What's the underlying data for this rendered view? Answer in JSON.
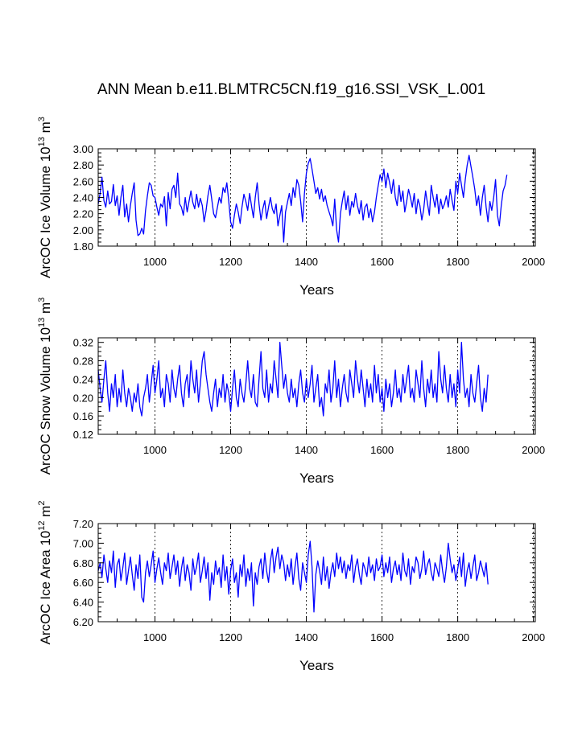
{
  "title": "ANN Mean b.e11.BLMTRC5CN.f19_g16.SSI_VSK_L.001",
  "series_color": "#0000ff",
  "chart_data": [
    {
      "type": "line",
      "id": "ice-volume",
      "title": "",
      "xlabel": "Years",
      "ylabel": {
        "base": "ArcOC Ice Volume 10",
        "exp": "13",
        "unit": " m",
        "unit_exp": "3"
      },
      "xlim": [
        850,
        2005
      ],
      "ylim": [
        1.8,
        3.0
      ],
      "xticks": [
        1000,
        1200,
        1400,
        1600,
        1800,
        2000
      ],
      "xtick_labels": [
        "1000",
        "1200",
        "1400",
        "1600",
        "1800",
        "2000"
      ],
      "yticks": [
        1.8,
        2.0,
        2.2,
        2.4,
        2.6,
        2.8,
        3.0
      ],
      "ytick_labels": [
        "1.80",
        "2.00",
        "2.20",
        "2.40",
        "2.60",
        "2.80",
        "3.00"
      ],
      "grid": "vertical dashed at major x ticks",
      "series": [
        {
          "x_start": 850,
          "x_step": 5,
          "values": [
            2.32,
            2.45,
            2.65,
            2.36,
            2.28,
            2.48,
            2.32,
            2.35,
            2.56,
            2.3,
            2.42,
            2.18,
            2.4,
            2.55,
            2.16,
            2.32,
            2.1,
            2.3,
            2.45,
            2.58,
            2.12,
            1.93,
            1.95,
            2.02,
            1.95,
            2.24,
            2.42,
            2.58,
            2.55,
            2.42,
            2.4,
            2.28,
            2.18,
            2.32,
            2.28,
            2.41,
            2.05,
            2.46,
            2.26,
            2.5,
            2.55,
            2.4,
            2.7,
            2.32,
            2.28,
            2.18,
            2.4,
            2.22,
            2.35,
            2.48,
            2.34,
            2.26,
            2.44,
            2.28,
            2.39,
            2.3,
            2.1,
            2.24,
            2.42,
            2.55,
            2.38,
            2.2,
            2.15,
            2.28,
            2.4,
            2.33,
            2.52,
            2.46,
            2.58,
            2.35,
            2.1,
            2.02,
            2.18,
            2.32,
            2.22,
            2.08,
            2.28,
            2.44,
            2.35,
            2.24,
            2.45,
            2.3,
            2.15,
            2.4,
            2.58,
            2.32,
            2.12,
            2.26,
            2.36,
            2.14,
            2.28,
            2.4,
            2.26,
            2.2,
            2.32,
            2.05,
            2.18,
            2.3,
            1.85,
            2.22,
            2.34,
            2.45,
            2.3,
            2.52,
            2.4,
            2.62,
            2.55,
            2.35,
            2.1,
            2.45,
            2.7,
            2.82,
            2.88,
            2.75,
            2.6,
            2.45,
            2.52,
            2.38,
            2.5,
            2.35,
            2.42,
            2.3,
            2.22,
            2.15,
            2.05,
            2.38,
            2.0,
            1.85,
            2.2,
            2.35,
            2.48,
            2.25,
            2.42,
            2.18,
            2.35,
            2.28,
            2.45,
            2.3,
            2.2,
            2.36,
            2.12,
            2.28,
            2.32,
            2.15,
            2.26,
            2.1,
            2.22,
            2.4,
            2.55,
            2.68,
            2.6,
            2.75,
            2.52,
            2.7,
            2.58,
            2.45,
            2.62,
            2.4,
            2.3,
            2.55,
            2.35,
            2.48,
            2.22,
            2.35,
            2.5,
            2.4,
            2.28,
            2.45,
            2.2,
            2.38,
            2.3,
            2.12,
            2.25,
            2.48,
            2.33,
            2.18,
            2.55,
            2.4,
            2.28,
            2.44,
            2.2,
            2.38,
            2.26,
            2.32,
            2.42,
            2.28,
            2.5,
            2.36,
            2.24,
            2.6,
            2.45,
            2.7,
            2.55,
            2.4,
            2.62,
            2.8,
            2.92,
            2.78,
            2.65,
            2.5,
            2.3,
            2.42,
            2.18,
            2.4,
            2.55,
            2.28,
            2.1,
            2.35,
            2.24,
            2.4,
            2.62,
            2.18,
            2.05,
            2.3,
            2.48,
            2.55,
            2.68
          ]
        }
      ]
    },
    {
      "type": "line",
      "id": "snow-volume",
      "title": "",
      "xlabel": "Years",
      "ylabel": {
        "base": "ArcOC Snow Volume 10",
        "exp": "13",
        "unit": " m",
        "unit_exp": "3"
      },
      "xlim": [
        850,
        2005
      ],
      "ylim": [
        0.12,
        0.33
      ],
      "xticks": [
        1000,
        1200,
        1400,
        1600,
        1800,
        2000
      ],
      "xtick_labels": [
        "1000",
        "1200",
        "1400",
        "1600",
        "1800",
        "2000"
      ],
      "yticks": [
        0.12,
        0.16,
        0.2,
        0.24,
        0.28,
        0.32
      ],
      "ytick_labels": [
        "0.12",
        "0.16",
        "0.20",
        "0.24",
        "0.28",
        "0.32"
      ],
      "grid": "vertical dashed at major x ticks",
      "series": [
        {
          "x_start": 850,
          "x_step": 5,
          "values": [
            0.26,
            0.22,
            0.19,
            0.24,
            0.28,
            0.21,
            0.17,
            0.23,
            0.2,
            0.25,
            0.18,
            0.22,
            0.19,
            0.26,
            0.21,
            0.18,
            0.22,
            0.2,
            0.17,
            0.21,
            0.19,
            0.23,
            0.18,
            0.16,
            0.2,
            0.22,
            0.25,
            0.19,
            0.23,
            0.27,
            0.21,
            0.24,
            0.28,
            0.2,
            0.22,
            0.18,
            0.25,
            0.23,
            0.19,
            0.26,
            0.22,
            0.2,
            0.24,
            0.27,
            0.21,
            0.18,
            0.23,
            0.25,
            0.2,
            0.28,
            0.24,
            0.21,
            0.26,
            0.19,
            0.23,
            0.28,
            0.3,
            0.25,
            0.22,
            0.19,
            0.17,
            0.21,
            0.24,
            0.18,
            0.22,
            0.2,
            0.25,
            0.19,
            0.23,
            0.21,
            0.17,
            0.22,
            0.26,
            0.2,
            0.18,
            0.24,
            0.21,
            0.19,
            0.23,
            0.28,
            0.22,
            0.2,
            0.25,
            0.19,
            0.18,
            0.24,
            0.3,
            0.22,
            0.2,
            0.26,
            0.19,
            0.23,
            0.21,
            0.28,
            0.24,
            0.2,
            0.32,
            0.27,
            0.22,
            0.25,
            0.21,
            0.19,
            0.24,
            0.2,
            0.22,
            0.18,
            0.23,
            0.26,
            0.21,
            0.19,
            0.24,
            0.2,
            0.23,
            0.27,
            0.19,
            0.22,
            0.25,
            0.18,
            0.2,
            0.16,
            0.23,
            0.21,
            0.26,
            0.19,
            0.22,
            0.28,
            0.2,
            0.24,
            0.18,
            0.22,
            0.25,
            0.21,
            0.19,
            0.26,
            0.23,
            0.2,
            0.28,
            0.24,
            0.21,
            0.26,
            0.22,
            0.18,
            0.24,
            0.2,
            0.23,
            0.19,
            0.27,
            0.21,
            0.25,
            0.19,
            0.22,
            0.17,
            0.24,
            0.2,
            0.23,
            0.18,
            0.21,
            0.26,
            0.2,
            0.22,
            0.19,
            0.25,
            0.21,
            0.24,
            0.27,
            0.2,
            0.22,
            0.19,
            0.26,
            0.23,
            0.2,
            0.28,
            0.22,
            0.18,
            0.24,
            0.21,
            0.26,
            0.2,
            0.23,
            0.19,
            0.3,
            0.24,
            0.21,
            0.27,
            0.22,
            0.19,
            0.25,
            0.2,
            0.23,
            0.18,
            0.26,
            0.21,
            0.32,
            0.24,
            0.2,
            0.22,
            0.18,
            0.25,
            0.21,
            0.19,
            0.23,
            0.27,
            0.2,
            0.17,
            0.22,
            0.19,
            0.25
          ]
        }
      ]
    },
    {
      "type": "line",
      "id": "ice-area",
      "title": "",
      "xlabel": "Years",
      "ylabel": {
        "base": "ArcOC Ice Area 10",
        "exp": "12",
        "unit": " m",
        "unit_exp": "2"
      },
      "xlim": [
        850,
        2005
      ],
      "ylim": [
        6.2,
        7.2
      ],
      "xticks": [
        1000,
        1200,
        1400,
        1600,
        1800,
        2000
      ],
      "xtick_labels": [
        "1000",
        "1200",
        "1400",
        "1600",
        "1800",
        "2000"
      ],
      "yticks": [
        6.2,
        6.4,
        6.6,
        6.8,
        7.0,
        7.2
      ],
      "ytick_labels": [
        "6.20",
        "6.40",
        "6.60",
        "6.80",
        "7.00",
        "7.20"
      ],
      "grid": "vertical dashed at major x ticks",
      "series": [
        {
          "x_start": 850,
          "x_step": 5,
          "values": [
            6.72,
            6.8,
            6.65,
            6.88,
            6.74,
            6.6,
            6.82,
            6.7,
            6.92,
            6.55,
            6.78,
            6.84,
            6.62,
            6.75,
            6.9,
            6.58,
            6.72,
            6.86,
            6.68,
            6.52,
            6.78,
            6.64,
            6.88,
            6.45,
            6.4,
            6.7,
            6.82,
            6.66,
            6.78,
            6.92,
            6.6,
            6.74,
            6.85,
            6.7,
            6.58,
            6.8,
            6.72,
            6.9,
            6.64,
            6.76,
            6.88,
            6.68,
            6.82,
            6.56,
            6.74,
            6.86,
            6.62,
            6.78,
            6.7,
            6.52,
            6.84,
            6.68,
            6.76,
            6.9,
            6.6,
            6.72,
            6.86,
            6.64,
            6.8,
            6.42,
            6.7,
            6.58,
            6.82,
            6.68,
            6.75,
            6.55,
            6.88,
            6.62,
            6.76,
            6.48,
            6.72,
            6.84,
            6.6,
            6.7,
            6.45,
            6.78,
            6.66,
            6.88,
            6.56,
            6.74,
            6.62,
            6.8,
            6.36,
            6.7,
            6.58,
            6.76,
            6.84,
            6.64,
            6.9,
            6.72,
            6.6,
            6.82,
            6.94,
            6.7,
            6.86,
            6.96,
            6.74,
            6.88,
            6.8,
            6.62,
            6.78,
            6.66,
            6.84,
            6.58,
            6.76,
            6.9,
            6.64,
            6.52,
            6.8,
            6.7,
            6.6,
            6.88,
            7.02,
            6.76,
            6.3,
            6.68,
            6.82,
            6.72,
            6.58,
            6.86,
            6.62,
            6.76,
            6.54,
            6.7,
            6.8,
            6.66,
            6.9,
            6.74,
            6.86,
            6.7,
            6.82,
            6.64,
            6.78,
            6.72,
            6.88,
            6.6,
            6.76,
            6.84,
            6.68,
            6.58,
            6.8,
            6.74,
            6.66,
            6.86,
            6.7,
            6.78,
            6.62,
            6.84,
            6.72,
            6.76,
            6.88,
            6.66,
            6.8,
            6.7,
            6.86,
            6.6,
            6.74,
            6.82,
            6.68,
            6.78,
            6.62,
            6.9,
            6.72,
            6.66,
            6.84,
            6.58,
            6.76,
            6.7,
            6.86,
            6.8,
            6.64,
            6.74,
            6.92,
            6.68,
            6.78,
            6.84,
            6.7,
            6.62,
            6.8,
            6.74,
            6.66,
            6.88,
            6.72,
            6.6,
            6.76,
            7.0,
            6.84,
            6.7,
            6.78,
            6.62,
            6.74,
            6.86,
            6.66,
            6.9,
            6.56,
            6.72,
            6.8,
            6.64,
            6.76,
            6.88,
            6.62,
            6.7,
            6.82,
            6.74,
            6.66,
            6.8,
            6.58
          ]
        }
      ]
    }
  ]
}
